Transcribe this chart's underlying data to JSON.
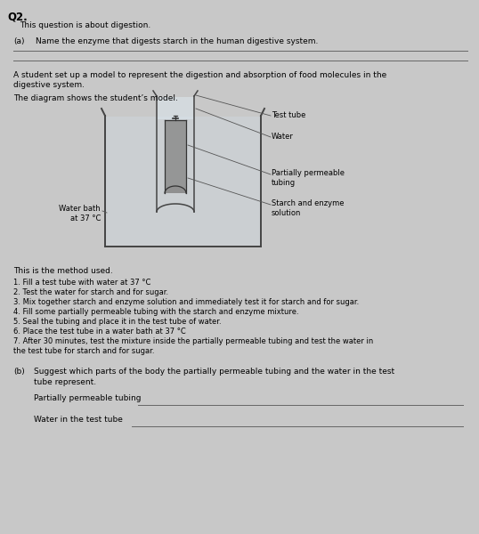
{
  "background_color": "#c8c8c8",
  "title": "Q2.",
  "subtitle": "This question is about digestion.",
  "part_a_label": "(a)",
  "part_a_text": "Name the enzyme that digests starch in the human digestive system.",
  "student_text1": "A student set up a model to represent the digestion and absorption of food molecules in the",
  "student_text2": "digestive system.",
  "diagram_text": "The diagram shows the student’s model.",
  "labels": {
    "test_tube": "Test tube",
    "water": "Water",
    "partially_permeable": "Partially permeable\ntubing",
    "starch_enzyme": "Starch and enzyme\nsolution",
    "water_bath": "Water bath\nat 37 °C"
  },
  "method_header": "This is the method used.",
  "method_steps": [
    "1. Fill a test tube with water at 37 °C",
    "2. Test the water for starch and for sugar.",
    "3. Mix together starch and enzyme solution and immediately test it for starch and for sugar.",
    "4. Fill some partially permeable tubing with the starch and enzyme mixture.",
    "5. Seal the tubing and place it in the test tube of water.",
    "6. Place the test tube in a water bath at 37 °C",
    "7. After 30 minutes, test the mixture inside the partially permeable tubing and test the water in"
  ],
  "method_step7_cont": "the test tube for starch and for sugar.",
  "part_b_label": "(b)",
  "part_b_text": "Suggest which parts of the body the partially permeable tubing and the water in the test",
  "part_b_text2": "tube represent.",
  "part_b_line1_label": "Partially permeable tubing",
  "part_b_line2_label": "Water in the test tube",
  "font_size_title": 8.5,
  "font_size_body": 6.5,
  "font_size_small": 6.0,
  "line_color": "#666666"
}
